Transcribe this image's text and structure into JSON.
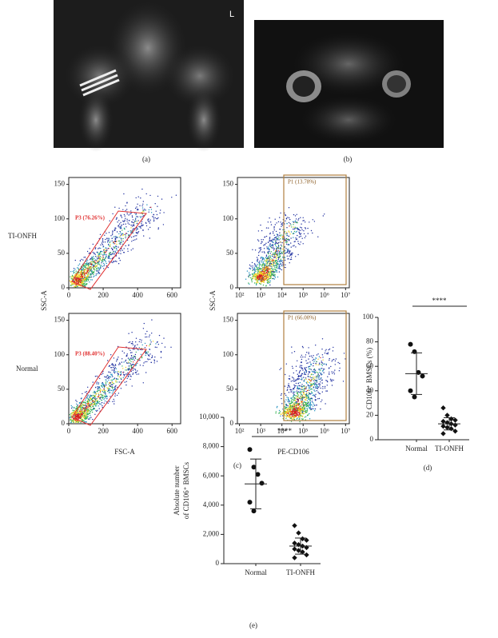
{
  "panel_labels": [
    "(a)",
    "(b)",
    "(c)",
    "(d)",
    "(e)"
  ],
  "xray": {
    "marker": "L"
  },
  "flow": {
    "row_labels": [
      "TI-ONFH",
      "Normal"
    ],
    "scatter": {
      "xlabel": "FSC-A",
      "ylabel": "SSC-A",
      "xlim": [
        0,
        650
      ],
      "xticks": [
        0,
        200,
        400,
        600
      ],
      "ylim": [
        0,
        160
      ],
      "yticks": [
        0,
        50,
        100,
        150
      ],
      "gates": [
        "P3 (76.26%)",
        "P3 (88.40%)"
      ]
    },
    "cd106": {
      "xlabel": "PE-CD106",
      "ylabel": "SSC-A",
      "xlog": true,
      "xlim": [
        80,
        15000000
      ],
      "xticks": [
        {
          "value": 100,
          "label": "10²"
        },
        {
          "value": 1000,
          "label": "10³"
        },
        {
          "value": 10000,
          "label": "10⁴"
        },
        {
          "value": 100000,
          "label": "10⁵"
        },
        {
          "value": 1000000,
          "label": "10⁶"
        },
        {
          "value": 10000000,
          "label": "10⁷"
        }
      ],
      "ylim": [
        0,
        160
      ],
      "yticks": [
        0,
        50,
        100,
        150
      ],
      "gates": [
        "P1 (13.78%)",
        "P1 (66.00%)"
      ]
    }
  },
  "percent": {
    "ylabel": "CD106⁺ BMSCs (%)",
    "categories": [
      "Normal",
      "TI-ONFH"
    ],
    "ylim": [
      0,
      100
    ],
    "yticks": [
      0,
      20,
      40,
      60,
      80,
      100
    ],
    "groups": [
      {
        "values": [
          78,
          72,
          55,
          52,
          40,
          35
        ],
        "mean": 54,
        "sd": 17
      },
      {
        "values": [
          26,
          20,
          17,
          16,
          15,
          14,
          13,
          12,
          11,
          10,
          9,
          7,
          5
        ],
        "mean": 13,
        "sd": 5
      }
    ],
    "significance": "****"
  },
  "absolute": {
    "ylabel": [
      "Absolute number",
      "of CD106⁺ BMSCs"
    ],
    "categories": [
      "Normal",
      "TI-ONFH"
    ],
    "ylim": [
      0,
      10000
    ],
    "yticks": [
      0,
      {
        "value": 2000,
        "label": "2,000"
      },
      {
        "value": 4000,
        "label": "4,000"
      },
      {
        "value": 6000,
        "label": "6,000"
      },
      {
        "value": 8000,
        "label": "8,000"
      },
      {
        "value": 10000,
        "label": "10,000"
      }
    ],
    "groups": [
      {
        "values": [
          7800,
          6600,
          6100,
          5500,
          4200,
          3600
        ],
        "mean": 5450,
        "sd": 1700
      },
      {
        "values": [
          2600,
          2100,
          1700,
          1600,
          1400,
          1300,
          1200,
          1100,
          1000,
          900,
          800,
          600,
          400
        ],
        "mean": 1200,
        "sd": 550
      }
    ],
    "significance": "****"
  }
}
